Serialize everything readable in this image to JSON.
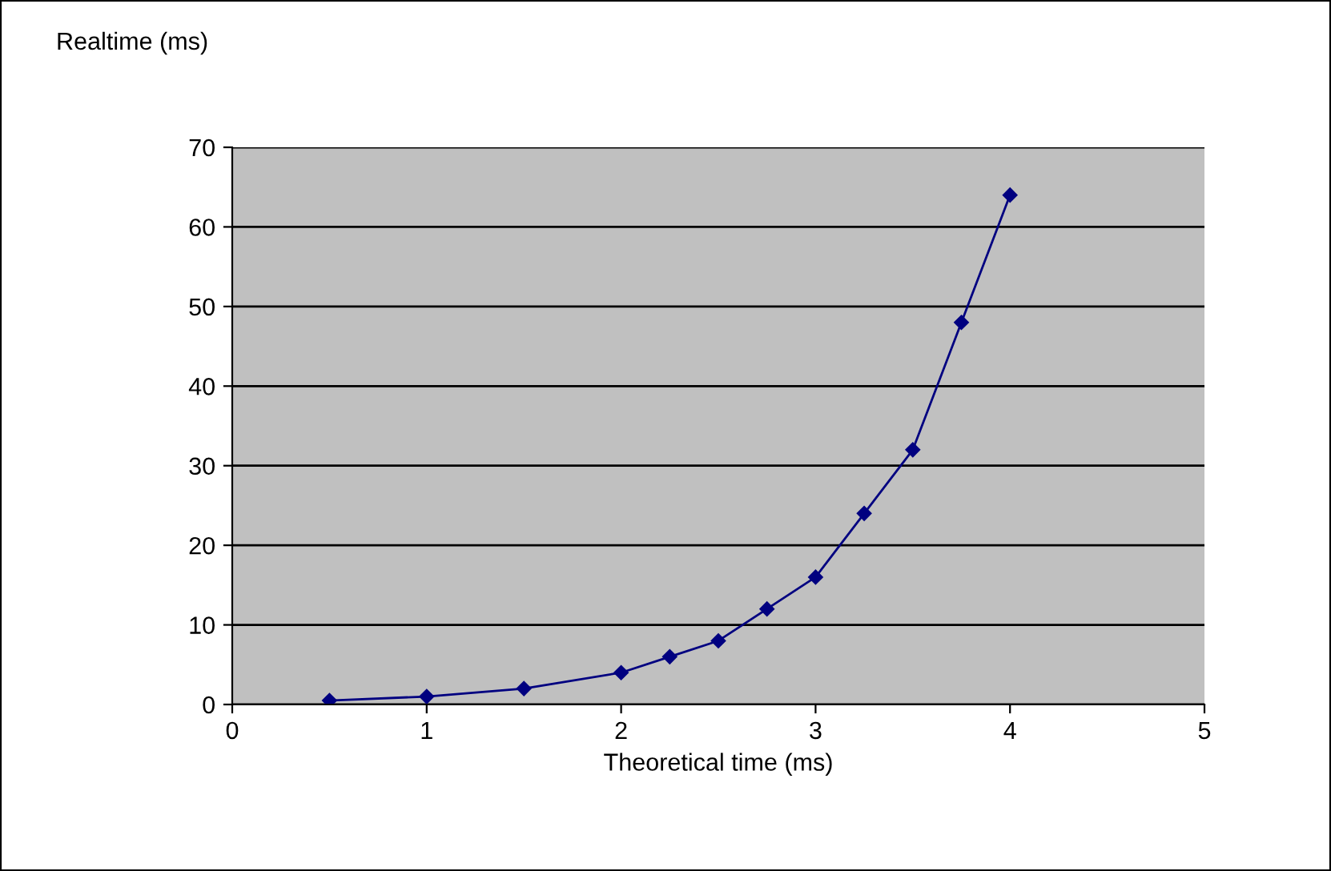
{
  "chart_data": {
    "type": "line",
    "xlabel": "Theoretical time (ms)",
    "ylabel": "Realtime (ms)",
    "series": [
      {
        "color": "#000080",
        "x": [
          0.5,
          1,
          1.5,
          2,
          2.25,
          2.5,
          2.75,
          3,
          3.25,
          3.5,
          3.75,
          4
        ],
        "values": [
          0.5,
          1,
          2,
          4,
          6,
          8,
          12,
          16,
          24,
          32,
          48,
          64
        ]
      }
    ],
    "xlim": [
      0,
      5
    ],
    "xticks": [
      0,
      1,
      2,
      3,
      4,
      5
    ],
    "ylim": [
      0,
      70
    ],
    "yticks": [
      0,
      10,
      20,
      30,
      40,
      50,
      60,
      70
    ],
    "grid": "y",
    "marker": "diamond",
    "line_style": "solid",
    "legend": false
  }
}
